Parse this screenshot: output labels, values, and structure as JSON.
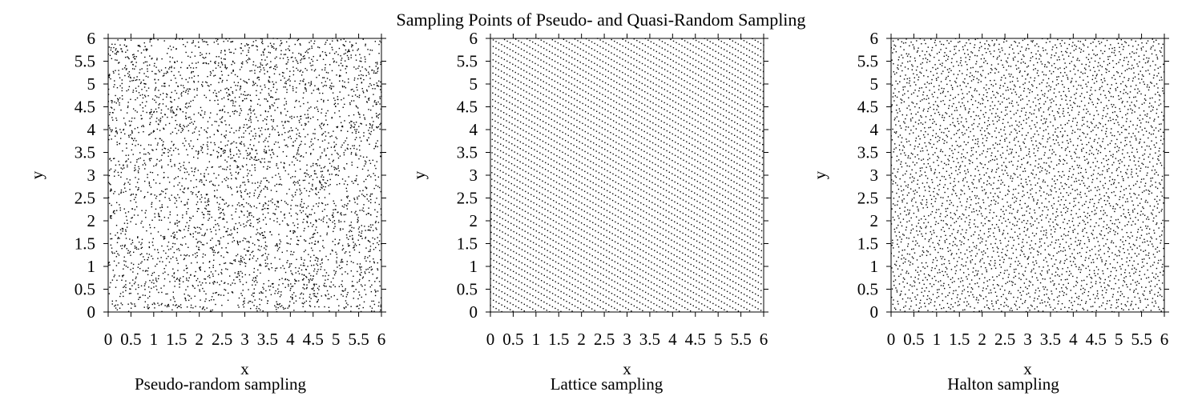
{
  "figure": {
    "title": "Sampling Points of Pseudo- and Quasi-Random Sampling"
  },
  "chart_data": [
    {
      "type": "scatter",
      "title": "",
      "caption": "Pseudo-random sampling",
      "xlabel": "x",
      "ylabel": "y",
      "xlim": [
        0,
        6
      ],
      "ylim": [
        0,
        6
      ],
      "xticks": [
        "0",
        "0.5",
        "1",
        "1.5",
        "2",
        "2.5",
        "3",
        "3.5",
        "4",
        "4.5",
        "5",
        "5.5",
        "6"
      ],
      "yticks": [
        "0",
        "0.5",
        "1",
        "1.5",
        "2",
        "2.5",
        "3",
        "3.5",
        "4",
        "4.5",
        "5",
        "5.5",
        "6"
      ],
      "method": "pseudo-random",
      "approx_point_count": 4000,
      "grid": false,
      "marker_color": "#000000"
    },
    {
      "type": "scatter",
      "title": "",
      "caption": "Lattice sampling",
      "xlabel": "x",
      "ylabel": "y",
      "xlim": [
        0,
        6
      ],
      "ylim": [
        0,
        6
      ],
      "xticks": [
        "0",
        "0.5",
        "1",
        "1.5",
        "2",
        "2.5",
        "3",
        "3.5",
        "4",
        "4.5",
        "5",
        "5.5",
        "6"
      ],
      "yticks": [
        "0",
        "0.5",
        "1",
        "1.5",
        "2",
        "2.5",
        "3",
        "3.5",
        "4",
        "4.5",
        "5",
        "5.5",
        "6"
      ],
      "method": "lattice",
      "approx_point_count": 4000,
      "grid": false,
      "marker_color": "#000000"
    },
    {
      "type": "scatter",
      "title": "",
      "caption": "Halton sampling",
      "xlabel": "x",
      "ylabel": "y",
      "xlim": [
        0,
        6
      ],
      "ylim": [
        0,
        6
      ],
      "xticks": [
        "0",
        "0.5",
        "1",
        "1.5",
        "2",
        "2.5",
        "3",
        "3.5",
        "4",
        "4.5",
        "5",
        "5.5",
        "6"
      ],
      "yticks": [
        "0",
        "0.5",
        "1",
        "1.5",
        "2",
        "2.5",
        "3",
        "3.5",
        "4",
        "4.5",
        "5",
        "5.5",
        "6"
      ],
      "method": "halton",
      "approx_point_count": 4000,
      "grid": false,
      "marker_color": "#000000"
    }
  ]
}
